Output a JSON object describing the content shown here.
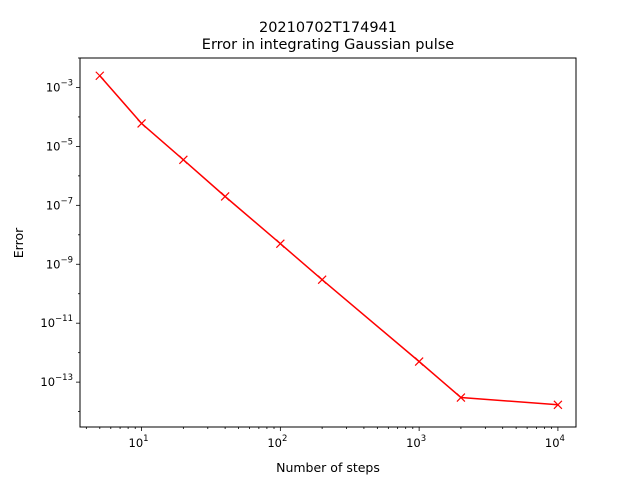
{
  "chart_data": {
    "type": "line",
    "title": "20210702T174941",
    "subtitle": "Error in integrating Gaussian pulse",
    "xlabel": "Number of steps",
    "ylabel": "Error",
    "xscale": "log",
    "yscale": "log",
    "xlim": [
      3.6,
      13500
    ],
    "ylim": [
      3e-15,
      0.01
    ],
    "grid": false,
    "series": [
      {
        "color": "#ff0000",
        "marker": "x",
        "x": [
          5,
          10,
          20,
          40,
          100,
          200,
          1000,
          2000,
          10000
        ],
        "y": [
          0.0025,
          6e-05,
          3.5e-06,
          2e-07,
          5e-09,
          3e-10,
          5e-13,
          3e-14,
          1.7e-14
        ]
      }
    ],
    "xticks": [
      {
        "value": 10,
        "base": "10",
        "exp": "1"
      },
      {
        "value": 100,
        "base": "10",
        "exp": "2"
      },
      {
        "value": 1000,
        "base": "10",
        "exp": "3"
      },
      {
        "value": 10000,
        "base": "10",
        "exp": "4"
      }
    ],
    "yticks": [
      {
        "value": 0.001,
        "base": "10",
        "exp": "−3"
      },
      {
        "value": 1e-05,
        "base": "10",
        "exp": "−5"
      },
      {
        "value": 1e-07,
        "base": "10",
        "exp": "−7"
      },
      {
        "value": 1e-09,
        "base": "10",
        "exp": "−9"
      },
      {
        "value": 1e-11,
        "base": "10",
        "exp": "−11"
      },
      {
        "value": 1e-13,
        "base": "10",
        "exp": "−13"
      }
    ]
  }
}
